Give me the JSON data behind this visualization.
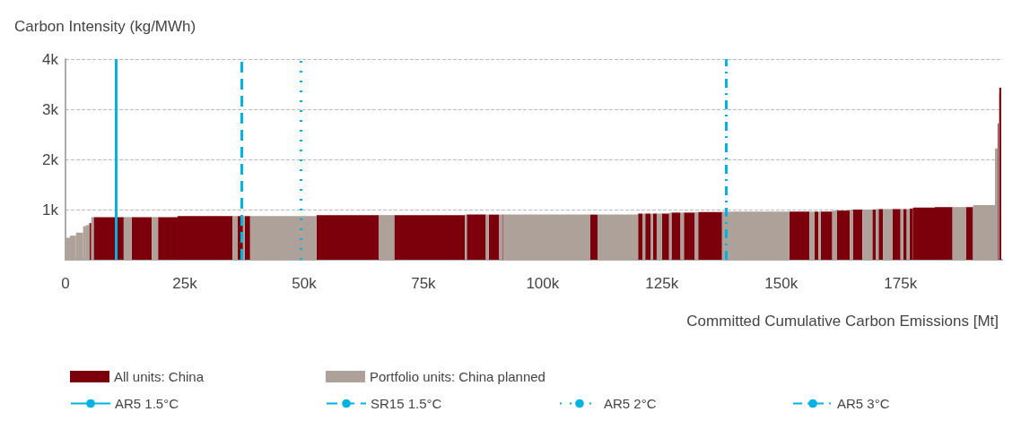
{
  "chart_data": {
    "type": "histogram",
    "ylabel": "Carbon Intensity (kg/MWh)",
    "xlabel": "Committed Cumulative Carbon Emissions [Mt]",
    "bins": [
      0,
      930,
      2200,
      3700,
      4300,
      5000,
      5400,
      5900,
      12200,
      13900,
      18100,
      19400,
      23500,
      35000,
      36100,
      37200,
      37600,
      38700,
      52600,
      65700,
      68900,
      83700,
      84100,
      88100,
      88700,
      90900,
      91500,
      91700,
      110000,
      111500,
      120000,
      120900,
      121500,
      122600,
      123100,
      123900,
      125000,
      126500,
      127000,
      128900,
      129600,
      131900,
      132600,
      137600,
      151700,
      155900,
      157000,
      157800,
      158300,
      160700,
      161700,
      164400,
      165000,
      167000,
      169100,
      169800,
      170400,
      171300,
      173300,
      175000,
      175600,
      176300,
      176900,
      177600,
      182200,
      185900,
      188700,
      190200,
      194800,
      195400,
      195600,
      195700,
      196100
    ],
    "series": [
      {
        "name": "All units: China",
        "color": "#7b000b",
        "values": [
          null,
          null,
          null,
          null,
          null,
          730,
          null,
          850,
          null,
          850,
          null,
          850,
          870,
          null,
          870,
          null,
          870,
          null,
          890,
          null,
          890,
          null,
          900,
          null,
          900,
          null,
          900,
          null,
          900,
          null,
          920,
          null,
          920,
          null,
          920,
          null,
          920,
          null,
          940,
          null,
          940,
          null,
          950,
          null,
          960,
          null,
          960,
          null,
          960,
          null,
          980,
          null,
          1000,
          null,
          1000,
          null,
          1010,
          null,
          1010,
          null,
          1010,
          null,
          1020,
          1040,
          1050,
          null,
          1050,
          null,
          null,
          2720,
          null,
          3430
        ]
      },
      {
        "name": "Portfolio units: China planned",
        "color": "#ada199",
        "values": [
          440,
          480,
          540,
          670,
          690,
          null,
          850,
          null,
          850,
          null,
          850,
          null,
          null,
          870,
          null,
          870,
          null,
          870,
          null,
          890,
          null,
          900,
          null,
          900,
          null,
          900,
          null,
          900,
          null,
          900,
          null,
          920,
          null,
          920,
          null,
          920,
          null,
          940,
          null,
          940,
          null,
          950,
          null,
          960,
          null,
          960,
          null,
          960,
          null,
          980,
          null,
          1000,
          null,
          1000,
          null,
          1010,
          null,
          1010,
          null,
          1010,
          null,
          1010,
          null,
          null,
          null,
          1050,
          null,
          1090,
          2220,
          null,
          3300,
          null
        ]
      }
    ],
    "xlim": [
      0,
      196300
    ],
    "xticks": [
      {
        "value": 0,
        "label": "0"
      },
      {
        "value": 25000,
        "label": "25k"
      },
      {
        "value": 50000,
        "label": "50k"
      },
      {
        "value": 75000,
        "label": "75k"
      },
      {
        "value": 100000,
        "label": "100k"
      },
      {
        "value": 125000,
        "label": "125k"
      },
      {
        "value": 150000,
        "label": "150k"
      },
      {
        "value": 175000,
        "label": "175k"
      }
    ],
    "ylim": [
      0,
      4000
    ],
    "yticks": [
      {
        "value": 0,
        "label": null
      },
      {
        "value": 1000,
        "label": "1k"
      },
      {
        "value": 2000,
        "label": "2k"
      },
      {
        "value": 3000,
        "label": "3k"
      },
      {
        "value": 4000,
        "label": "4k"
      }
    ],
    "grid": "y",
    "legend": "bottom",
    "ref_lines": [
      {
        "axis": "x",
        "value": 10600,
        "label": "AR5 1.5°C",
        "color": "#00b3e0",
        "line_style": "solid"
      },
      {
        "axis": "x",
        "value": 36900,
        "label": "SR15 1.5°C",
        "color": "#00b3e0",
        "line_style": "dashed"
      },
      {
        "axis": "x",
        "value": 49300,
        "label": "AR5 2°C",
        "color": "#00b3e0",
        "line_style": "dotted"
      },
      {
        "axis": "x",
        "value": 138500,
        "label": "AR5 3°C",
        "color": "#00b3e0",
        "line_style": "dashdot"
      }
    ]
  }
}
